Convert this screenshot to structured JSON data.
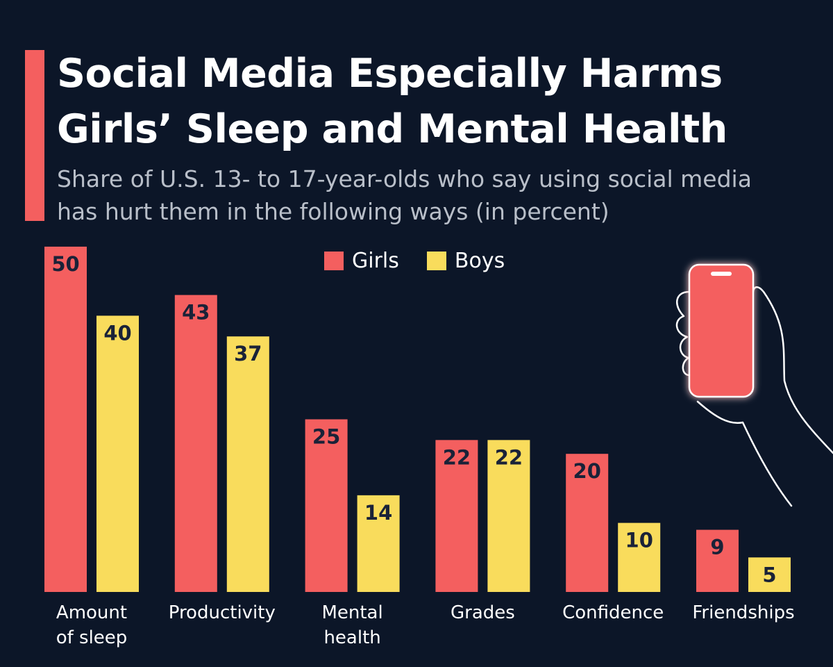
{
  "title_line1": "Social Media Especially Harms",
  "title_line2": "Girls’ Sleep and Mental Health",
  "subtitle_line1": "Share of U.S. 13- to 17-year-olds who say using social media",
  "subtitle_line2": "has hurt them in the following ways (in percent)",
  "colors": {
    "background": "#0c1628",
    "girls": "#f45f5f",
    "boys": "#f9dc5c",
    "value_text": "#1a2238"
  },
  "illustration": "hand-holding-phone-icon",
  "chart_data": {
    "type": "bar",
    "title": "Social Media Especially Harms Girls’ Sleep and Mental Health",
    "categories": [
      [
        "Amount",
        "of sleep"
      ],
      [
        "Productivity"
      ],
      [
        "Mental",
        "health"
      ],
      [
        "Grades"
      ],
      [
        "Confidence"
      ],
      [
        "Friendships"
      ]
    ],
    "series": [
      {
        "name": "Girls",
        "values": [
          50,
          43,
          25,
          22,
          20,
          9
        ]
      },
      {
        "name": "Boys",
        "values": [
          40,
          37,
          14,
          22,
          10,
          5
        ]
      }
    ],
    "ylim": [
      0,
      50
    ],
    "grid": false,
    "legend": "top-center",
    "data_labels": true
  }
}
